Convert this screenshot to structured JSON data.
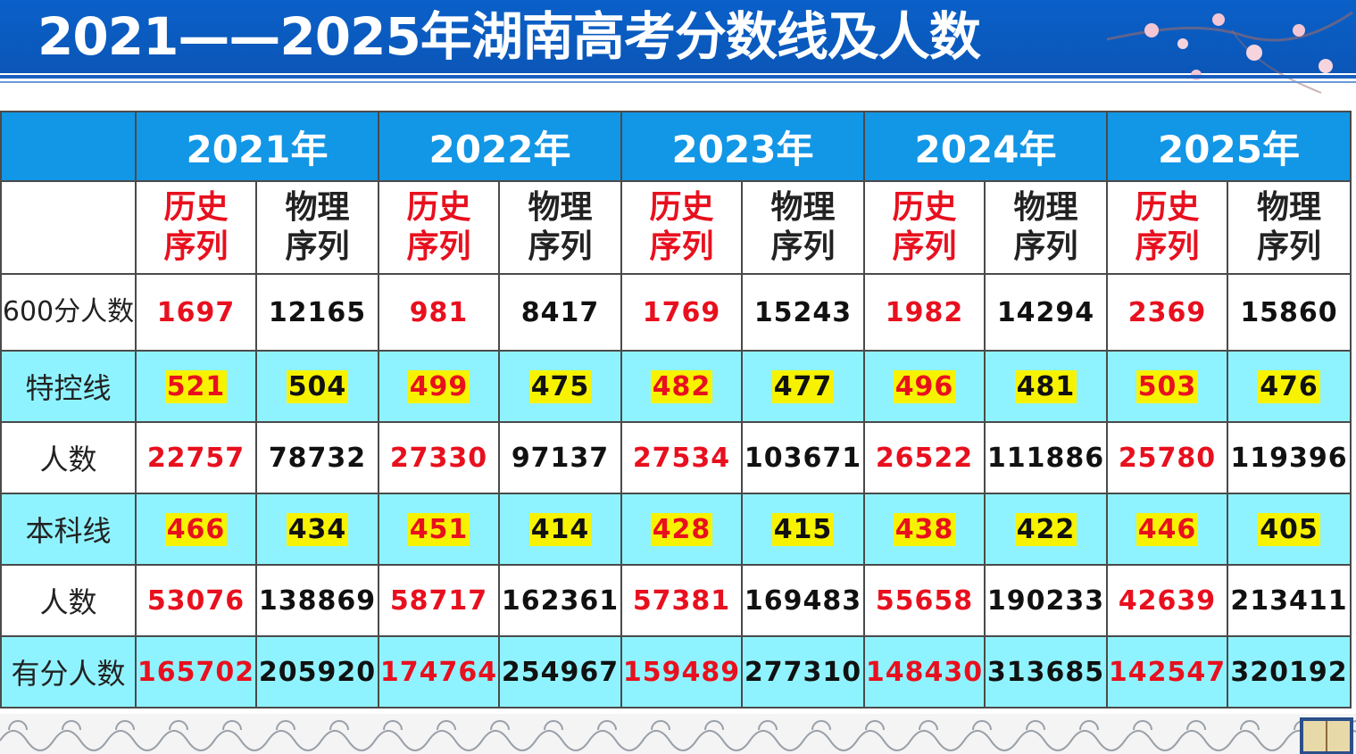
{
  "title": "2021——2025年湖南高考分数线及人数",
  "years": [
    "2021年",
    "2022年",
    "2023年",
    "2024年",
    "2025年"
  ],
  "seq_history": [
    "历史",
    "序列"
  ],
  "seq_physics": [
    "物理",
    "序列"
  ],
  "rows": [
    {
      "key": "r600",
      "label": "600分人数",
      "hl": false,
      "values": [
        [
          "1697",
          "12165"
        ],
        [
          "981",
          "8417"
        ],
        [
          "1769",
          "15243"
        ],
        [
          "1982",
          "14294"
        ],
        [
          "2369",
          "15860"
        ]
      ]
    },
    {
      "key": "tk",
      "label": "特控线",
      "hl": true,
      "values": [
        [
          "521",
          "504"
        ],
        [
          "499",
          "475"
        ],
        [
          "482",
          "477"
        ],
        [
          "496",
          "481"
        ],
        [
          "503",
          "476"
        ]
      ]
    },
    {
      "key": "n1",
      "label": "人数",
      "hl": false,
      "values": [
        [
          "22757",
          "78732"
        ],
        [
          "27330",
          "97137"
        ],
        [
          "27534",
          "103671"
        ],
        [
          "26522",
          "111886"
        ],
        [
          "25780",
          "119396"
        ]
      ]
    },
    {
      "key": "bk",
      "label": "本科线",
      "hl": true,
      "values": [
        [
          "466",
          "434"
        ],
        [
          "451",
          "414"
        ],
        [
          "428",
          "415"
        ],
        [
          "438",
          "422"
        ],
        [
          "446",
          "405"
        ]
      ]
    },
    {
      "key": "n2",
      "label": "人数",
      "hl": false,
      "values": [
        [
          "53076",
          "138869"
        ],
        [
          "58717",
          "162361"
        ],
        [
          "57381",
          "169483"
        ],
        [
          "55658",
          "190233"
        ],
        [
          "42639",
          "213411"
        ]
      ]
    },
    {
      "key": "you",
      "label": "有分人数",
      "hl": false,
      "values": [
        [
          "165702",
          "205920"
        ],
        [
          "174764",
          "254967"
        ],
        [
          "159489",
          "277310"
        ],
        [
          "148430",
          "313685"
        ],
        [
          "142547",
          "320192"
        ]
      ]
    }
  ],
  "colors": {
    "header_blue": "#1296e6",
    "row_cyan": "#8ff3ff",
    "highlight": "#f7f300",
    "history_red": "#e8101e"
  }
}
